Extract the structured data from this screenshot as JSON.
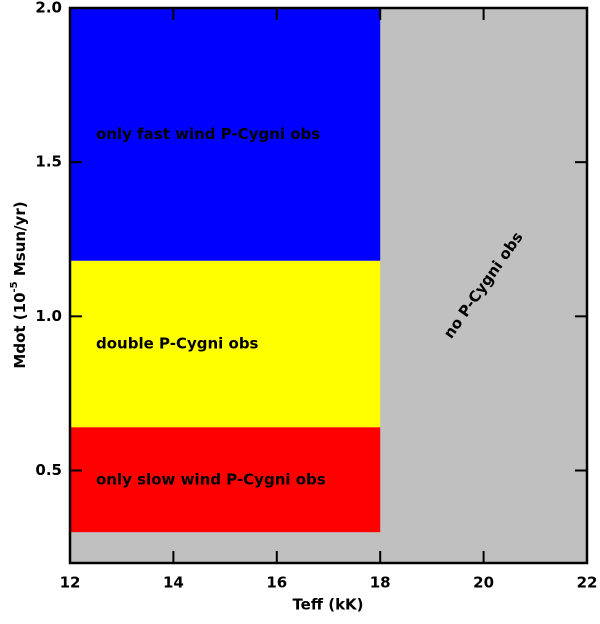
{
  "chart_data": {
    "type": "region",
    "xlabel": "Teff (kK)",
    "ylabel": {
      "text": "Mdot (10",
      "sup": "-5",
      "after": " Msun/yr)"
    },
    "xlim": [
      12,
      22
    ],
    "xticks": [
      12,
      14,
      16,
      18,
      20,
      22
    ],
    "ylim": [
      0.2,
      2.0
    ],
    "yticks": [
      0.5,
      {
        "value": 1,
        "label": "1.0"
      },
      1.5,
      {
        "value": 2,
        "label": "2.0"
      }
    ],
    "regions": [
      {
        "name": "no P-Cygni obs",
        "color": "#c0c0c0",
        "x": [
          12,
          22
        ],
        "y": [
          0.2,
          2.0
        ]
      },
      {
        "name": "only fast wind P-Cygni obs",
        "color": "#0000ff",
        "x": [
          12,
          18
        ],
        "y": [
          1.18,
          2.0
        ]
      },
      {
        "name": "double P-Cygni obs",
        "color": "#ffff00",
        "x": [
          12,
          18
        ],
        "y": [
          0.64,
          1.18
        ]
      },
      {
        "name": "only slow wind P-Cygni obs",
        "color": "#ff0000",
        "x": [
          12,
          18
        ],
        "y": [
          0.3,
          0.64
        ]
      }
    ]
  }
}
